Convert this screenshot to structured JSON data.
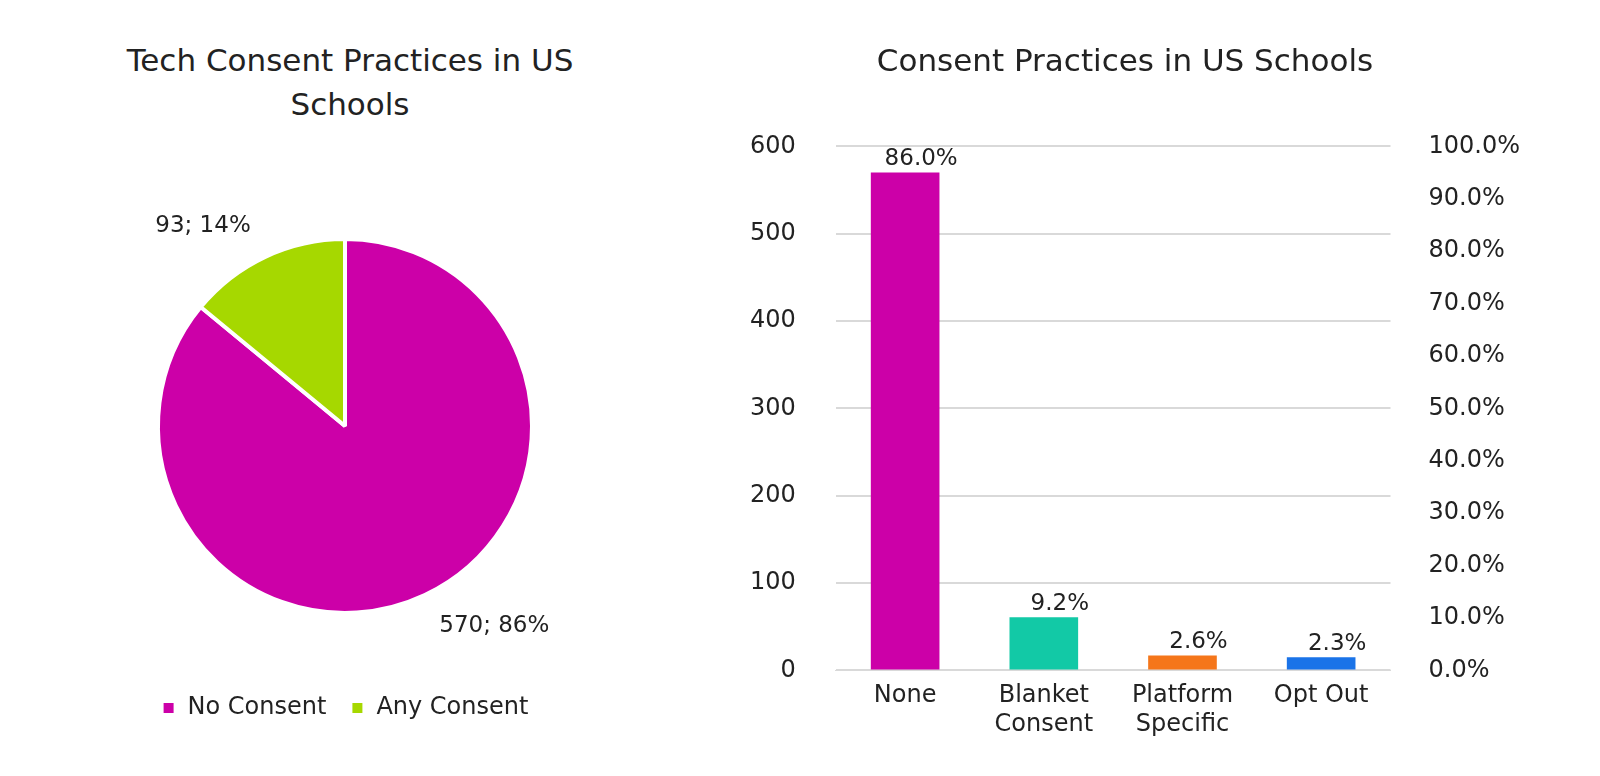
{
  "chart_data": [
    {
      "type": "pie",
      "title": "Tech Consent Practices in US Schools",
      "categories": [
        "No Consent",
        "Any Consent"
      ],
      "values": [
        570,
        93
      ],
      "value_labels": [
        "570; 86%",
        "93; 14%"
      ],
      "colors": [
        "#cc00a8",
        "#a6d800"
      ],
      "legend": "bottom",
      "data_labels": true
    },
    {
      "type": "bar",
      "title": "Consent Practices in US Schools",
      "categories": [
        "None",
        "Blanket Consent",
        "Platform Specific",
        "Opt Out"
      ],
      "values": [
        570,
        61,
        17,
        15
      ],
      "value_labels": [
        "86.0%",
        "9.2%",
        "2.6%",
        "2.3%"
      ],
      "colors": [
        "#cc00a8",
        "#12c9a6",
        "#f5761a",
        "#1a73e8"
      ],
      "ylim": [
        0,
        600
      ],
      "yticks": [
        0,
        100,
        200,
        300,
        400,
        500,
        600
      ],
      "y2lim": [
        0,
        100
      ],
      "y2ticks": [
        {
          "value": 0,
          "label": "0.0%"
        },
        {
          "value": 10,
          "label": "10.0%"
        },
        {
          "value": 20,
          "label": "20.0%"
        },
        {
          "value": 30,
          "label": "30.0%"
        },
        {
          "value": 40,
          "label": "40.0%"
        },
        {
          "value": 50,
          "label": "50.0%"
        },
        {
          "value": 60,
          "label": "60.0%"
        },
        {
          "value": 70,
          "label": "70.0%"
        },
        {
          "value": 80,
          "label": "80.0%"
        },
        {
          "value": 90,
          "label": "90.0%"
        },
        {
          "value": 100,
          "label": "100.0%"
        }
      ],
      "grid": true,
      "data_labels": true
    }
  ]
}
